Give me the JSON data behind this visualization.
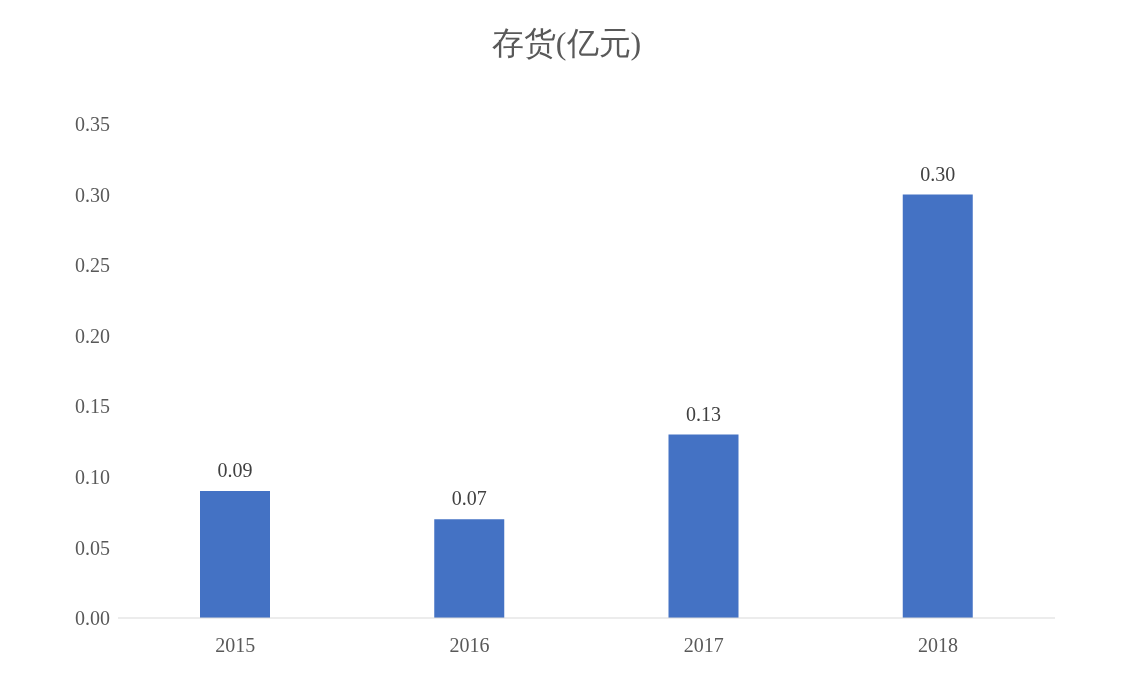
{
  "chart_data": {
    "type": "bar",
    "title": "存货(亿元)",
    "categories": [
      "2015",
      "2016",
      "2017",
      "2018"
    ],
    "values": [
      0.09,
      0.07,
      0.13,
      0.3
    ],
    "value_labels": [
      "0.09",
      "0.07",
      "0.13",
      "0.30"
    ],
    "color": "#4472c4",
    "ylim": [
      0,
      0.35
    ],
    "yticks": [
      {
        "value": 0,
        "label": "0.00"
      },
      {
        "value": 0.05,
        "label": "0.05"
      },
      {
        "value": 0.1,
        "label": "0.10"
      },
      {
        "value": 0.15,
        "label": "0.15"
      },
      {
        "value": 0.2,
        "label": "0.20"
      },
      {
        "value": 0.25,
        "label": "0.25"
      },
      {
        "value": 0.3,
        "label": "0.30"
      },
      {
        "value": 0.35,
        "label": "0.35"
      }
    ],
    "grid": false,
    "legend": false
  }
}
